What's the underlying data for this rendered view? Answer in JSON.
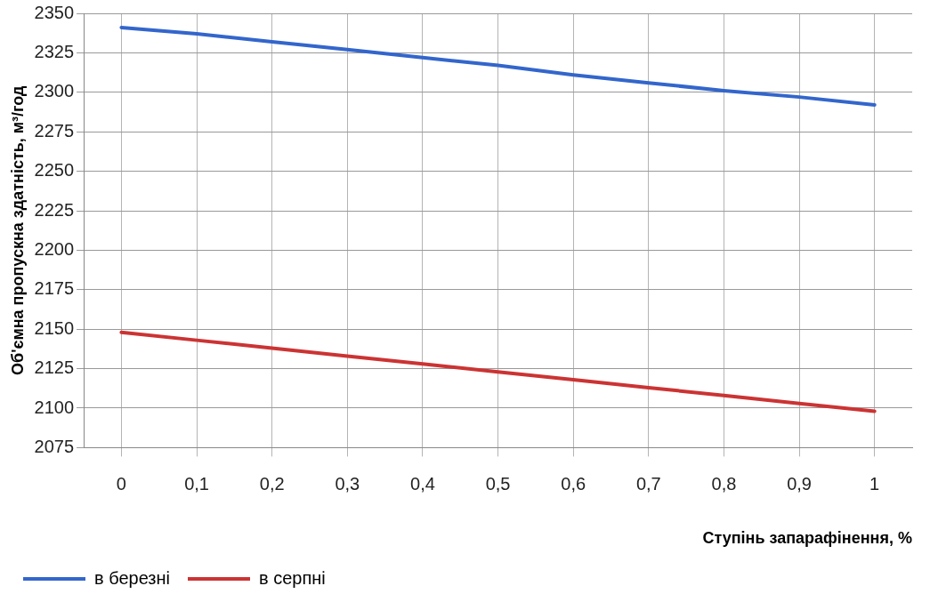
{
  "chart_data": {
    "type": "line",
    "xlabel": "Ступінь запарафінення, %",
    "ylabel": "Об'ємна пропускна здатність, м³/год",
    "categories": [
      "0",
      "0,1",
      "0,2",
      "0,3",
      "0,4",
      "0,5",
      "0,6",
      "0,7",
      "0,8",
      "0,9",
      "1"
    ],
    "series": [
      {
        "name": "в березні",
        "color": "#3366cc",
        "values": [
          2341,
          2337,
          2332,
          2327,
          2322,
          2317,
          2311,
          2306,
          2301,
          2297,
          2292
        ]
      },
      {
        "name": "в серпні",
        "color": "#cc3333",
        "values": [
          2148,
          2143,
          2138,
          2133,
          2128,
          2123,
          2118,
          2113,
          2108,
          2103,
          2098
        ]
      }
    ],
    "ylim": [
      2075,
      2350
    ],
    "yticks": [
      2075,
      2100,
      2125,
      2150,
      2175,
      2200,
      2225,
      2250,
      2275,
      2300,
      2325,
      2350
    ],
    "grid": true,
    "legend": "bottom",
    "marker": "none",
    "line_style": "solid"
  }
}
